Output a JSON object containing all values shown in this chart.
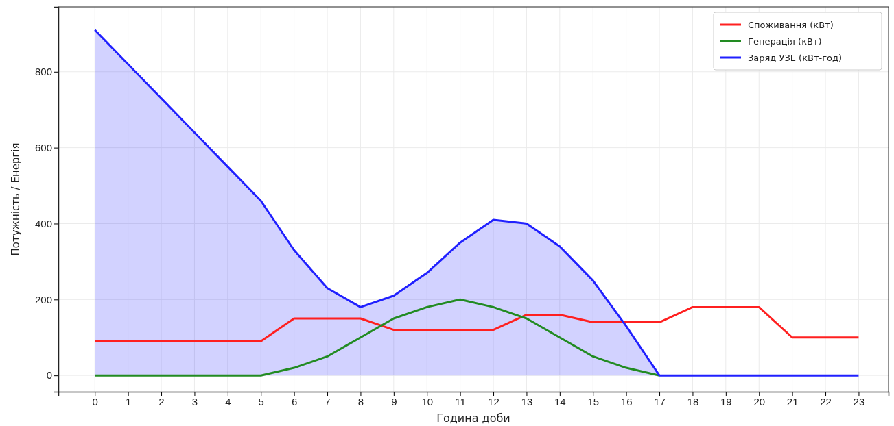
{
  "chart_data": {
    "type": "line",
    "xlabel": "Година доби",
    "ylabel": "Потужність / Енергія",
    "x": [
      0,
      1,
      2,
      3,
      4,
      5,
      6,
      7,
      8,
      9,
      10,
      11,
      12,
      13,
      14,
      15,
      16,
      17,
      18,
      19,
      20,
      21,
      22,
      23
    ],
    "series": [
      {
        "name": "Споживання (кВт)",
        "color": "#ff2020",
        "values": [
          90,
          90,
          90,
          90,
          90,
          90,
          150,
          150,
          150,
          120,
          120,
          120,
          120,
          160,
          160,
          140,
          140,
          140,
          180,
          180,
          180,
          100,
          100,
          100
        ]
      },
      {
        "name": "Генерація (кВт)",
        "color": "#228b22",
        "values": [
          0,
          0,
          0,
          0,
          0,
          0,
          20,
          50,
          100,
          150,
          180,
          200,
          180,
          150,
          100,
          50,
          20,
          0,
          null,
          null,
          null,
          null,
          null,
          null
        ]
      },
      {
        "name": "Заряд УЗЕ (кВт-год)",
        "color": "#2020ff",
        "type": "area",
        "values": [
          910,
          820,
          730,
          640,
          550,
          460,
          330,
          230,
          180,
          210,
          270,
          350,
          410,
          400,
          340,
          250,
          130,
          0,
          0,
          0,
          0,
          0,
          0,
          0
        ]
      }
    ],
    "xlim": [
      -1.1,
      23.9
    ],
    "ylim": [
      -43,
      971
    ],
    "xticks": [
      0,
      1,
      2,
      3,
      4,
      5,
      6,
      7,
      8,
      9,
      10,
      11,
      12,
      13,
      14,
      15,
      16,
      17,
      18,
      19,
      20,
      21,
      22,
      23
    ],
    "yticks": [
      0,
      200,
      400,
      600,
      800
    ],
    "grid": true,
    "legend": "top right"
  }
}
